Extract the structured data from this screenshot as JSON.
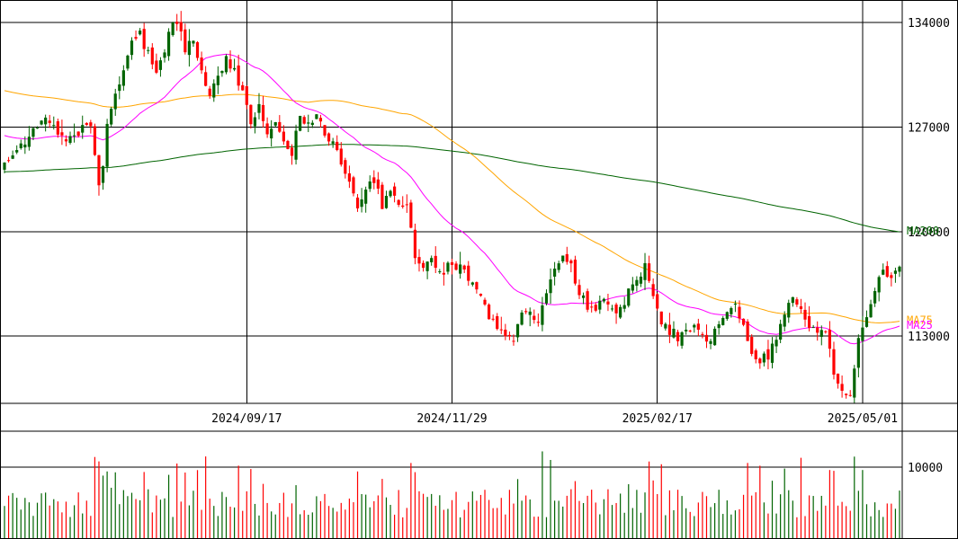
{
  "chart_data": [
    {
      "type": "candlestick",
      "ylim": [
        108500,
        135500
      ],
      "y_ticks": [
        {
          "value": 134000,
          "label": "134000"
        },
        {
          "value": 127000,
          "label": "127000"
        },
        {
          "value": 120000,
          "label": "120000"
        },
        {
          "value": 113000,
          "label": "113000"
        }
      ],
      "x_ticks": [
        {
          "index": 59,
          "label": "2024/09/17"
        },
        {
          "index": 109,
          "label": "2024/11/29"
        },
        {
          "index": 159,
          "label": "2025/02/17"
        },
        {
          "index": 209,
          "label": "2025/05/01"
        }
      ],
      "up_color": "#006400",
      "down_color": "#ff0000",
      "ma_series": [
        {
          "name": "MA200",
          "color": "#006400"
        },
        {
          "name": "MA75",
          "color": "#ffa500"
        },
        {
          "name": "MA25",
          "color": "#ff00ff"
        }
      ],
      "grid": true
    },
    {
      "type": "bar",
      "ylim": [
        0,
        15000
      ],
      "y_ticks": [
        {
          "value": 10000,
          "label": "10000"
        }
      ],
      "grid": true
    }
  ]
}
